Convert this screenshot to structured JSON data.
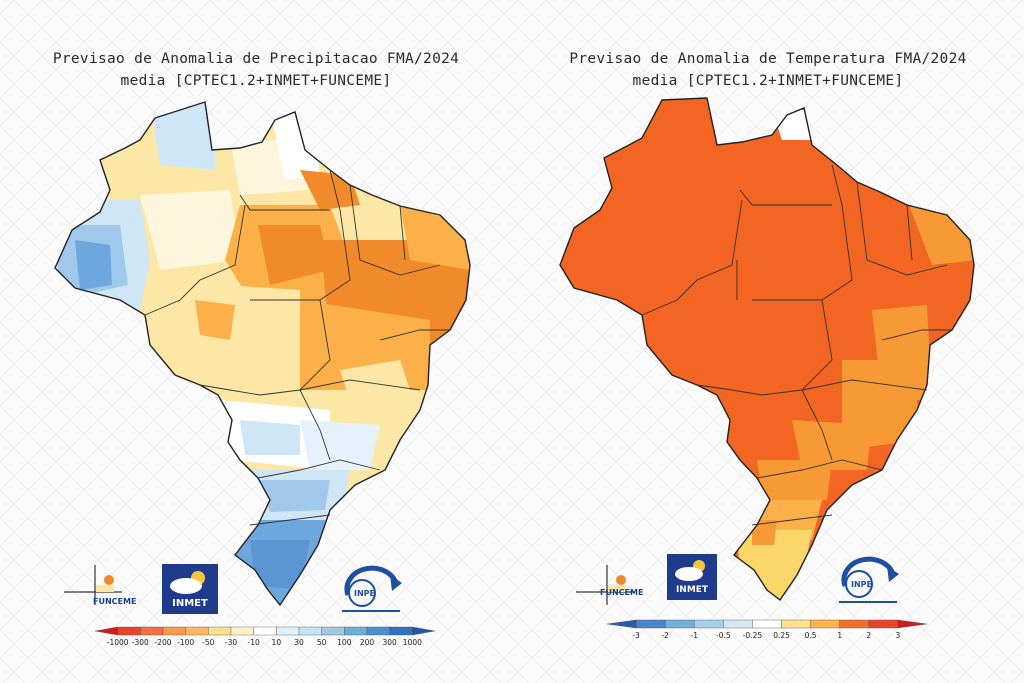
{
  "left_panel": {
    "title_line1": "Previsao de Anomalia de Precipitacao FMA/2024",
    "title_line2": "media [CPTEC1.2+INMET+FUNCEME]",
    "colorbar_ticks": [
      "-1000",
      "-300",
      "-200",
      "-100",
      "-50",
      "-30",
      "-10",
      "10",
      "30",
      "50",
      "100",
      "200",
      "300",
      "1000"
    ],
    "colorbar_colors": [
      "#d7191c",
      "#e8432b",
      "#f46d43",
      "#f99a4a",
      "#fdb863",
      "#fde08b",
      "#fff3c4",
      "#ffffff",
      "#e0f1fb",
      "#c6e2f4",
      "#9ecae1",
      "#6baed6",
      "#4a90d0",
      "#3072c0",
      "#2155a8"
    ]
  },
  "right_panel": {
    "title_line1": "Previsao de Anomalia de Temperatura FMA/2024",
    "title_line2": "media [CPTEC1.2+INMET+FUNCEME]",
    "colorbar_ticks": [
      "-3",
      "-2",
      "-1",
      "-0.5",
      "-0.25",
      "0.25",
      "0.5",
      "1",
      "2",
      "3"
    ],
    "colorbar_colors": [
      "#2b5aa8",
      "#4a86c8",
      "#74aedb",
      "#a6cfe8",
      "#d3e8f3",
      "#ffffff",
      "#fde08b",
      "#fbb24a",
      "#f46d2b",
      "#e8432b",
      "#c81e1e"
    ]
  },
  "logos": {
    "funceme": "FUNCEME",
    "inmet": "INMET",
    "inpe": "INPE"
  },
  "colors": {
    "precip_dry_strong": "#f08a2a",
    "precip_dry_mid": "#fbb04a",
    "precip_dry_light": "#fde7a6",
    "precip_neutral": "#ffffff",
    "precip_wet_light": "#cfe6f6",
    "precip_wet_mid": "#9fc8ec",
    "precip_wet_strong": "#6ea6de",
    "temp_hot": "#f26522",
    "temp_warm": "#f79a35",
    "temp_mild": "#fbd66a"
  }
}
